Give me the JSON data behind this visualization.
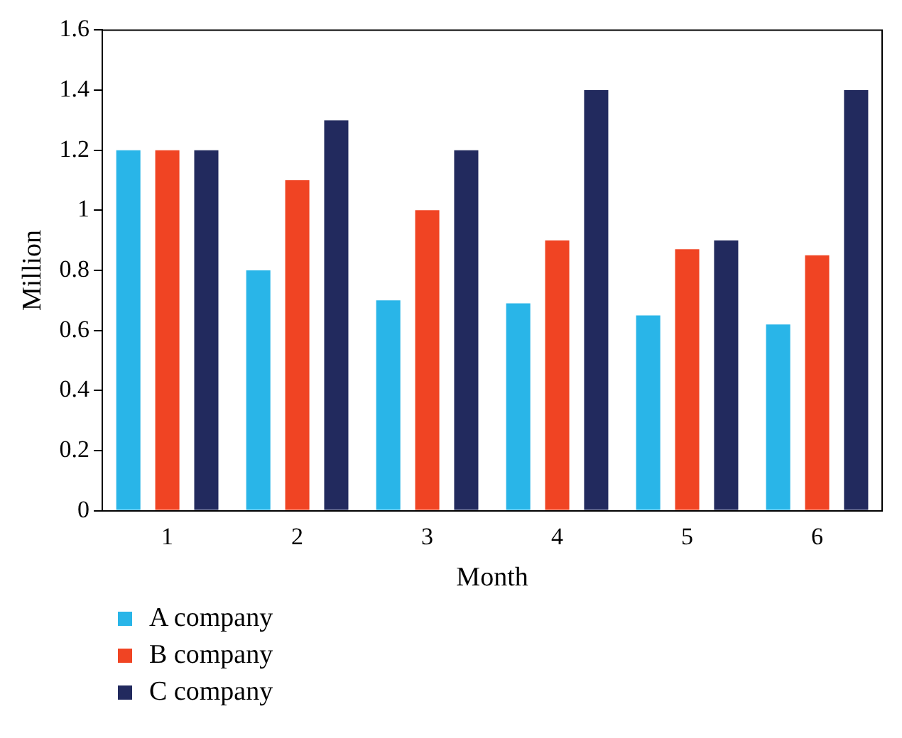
{
  "chart_data": {
    "type": "bar",
    "xlabel": "Month",
    "ylabel": "Million",
    "categories": [
      "1",
      "2",
      "3",
      "4",
      "5",
      "6"
    ],
    "series": [
      {
        "name": "A company",
        "color": "#29b5e8",
        "values": [
          1.2,
          0.8,
          0.7,
          0.69,
          0.65,
          0.62
        ]
      },
      {
        "name": "B company",
        "color": "#f04423",
        "values": [
          1.2,
          1.1,
          1.0,
          0.9,
          0.87,
          0.85
        ]
      },
      {
        "name": "C company",
        "color": "#222a5e",
        "values": [
          1.2,
          1.3,
          1.2,
          1.4,
          0.9,
          1.4
        ]
      }
    ],
    "ylim": [
      0,
      1.6
    ],
    "yticks": [
      0,
      0.2,
      0.4,
      0.6,
      0.8,
      1,
      1.2,
      1.4,
      1.6
    ],
    "grid": false,
    "legend": "bottom left"
  }
}
